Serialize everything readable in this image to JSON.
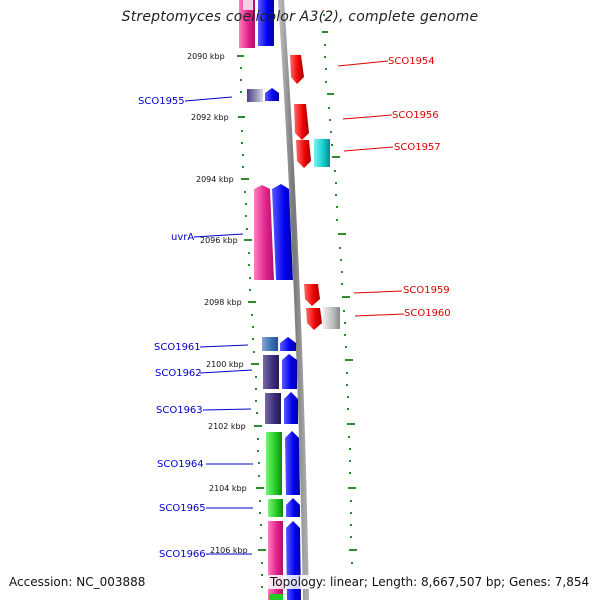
{
  "title": "Streptomyces coelicolor A3(2), complete genome",
  "footer": {
    "accession": "Accession: NC_003888",
    "topology": "Topology: linear; Length: 8,667,507 bp; Genes: 7,854"
  },
  "colors": {
    "label_left": "#0000cc",
    "label_right": "#dd0000",
    "backbone": "#8a8a8a",
    "ticks": "#2e8b2e"
  },
  "position_ticks": [
    "2090 kbp",
    "2092 kbp",
    "2094 kbp",
    "2096 kbp",
    "2098 kbp",
    "2100 kbp",
    "2102 kbp",
    "2104 kbp",
    "2106 kbp"
  ],
  "genes_left": [
    "SCO1955",
    "uvrA",
    "SCO1961",
    "SCO1962",
    "SCO1963",
    "SCO1964",
    "SCO1965",
    "SCO1966"
  ],
  "genes_right": [
    "SCO1954",
    "SCO1956",
    "SCO1957",
    "SCO1959",
    "SCO1960"
  ]
}
